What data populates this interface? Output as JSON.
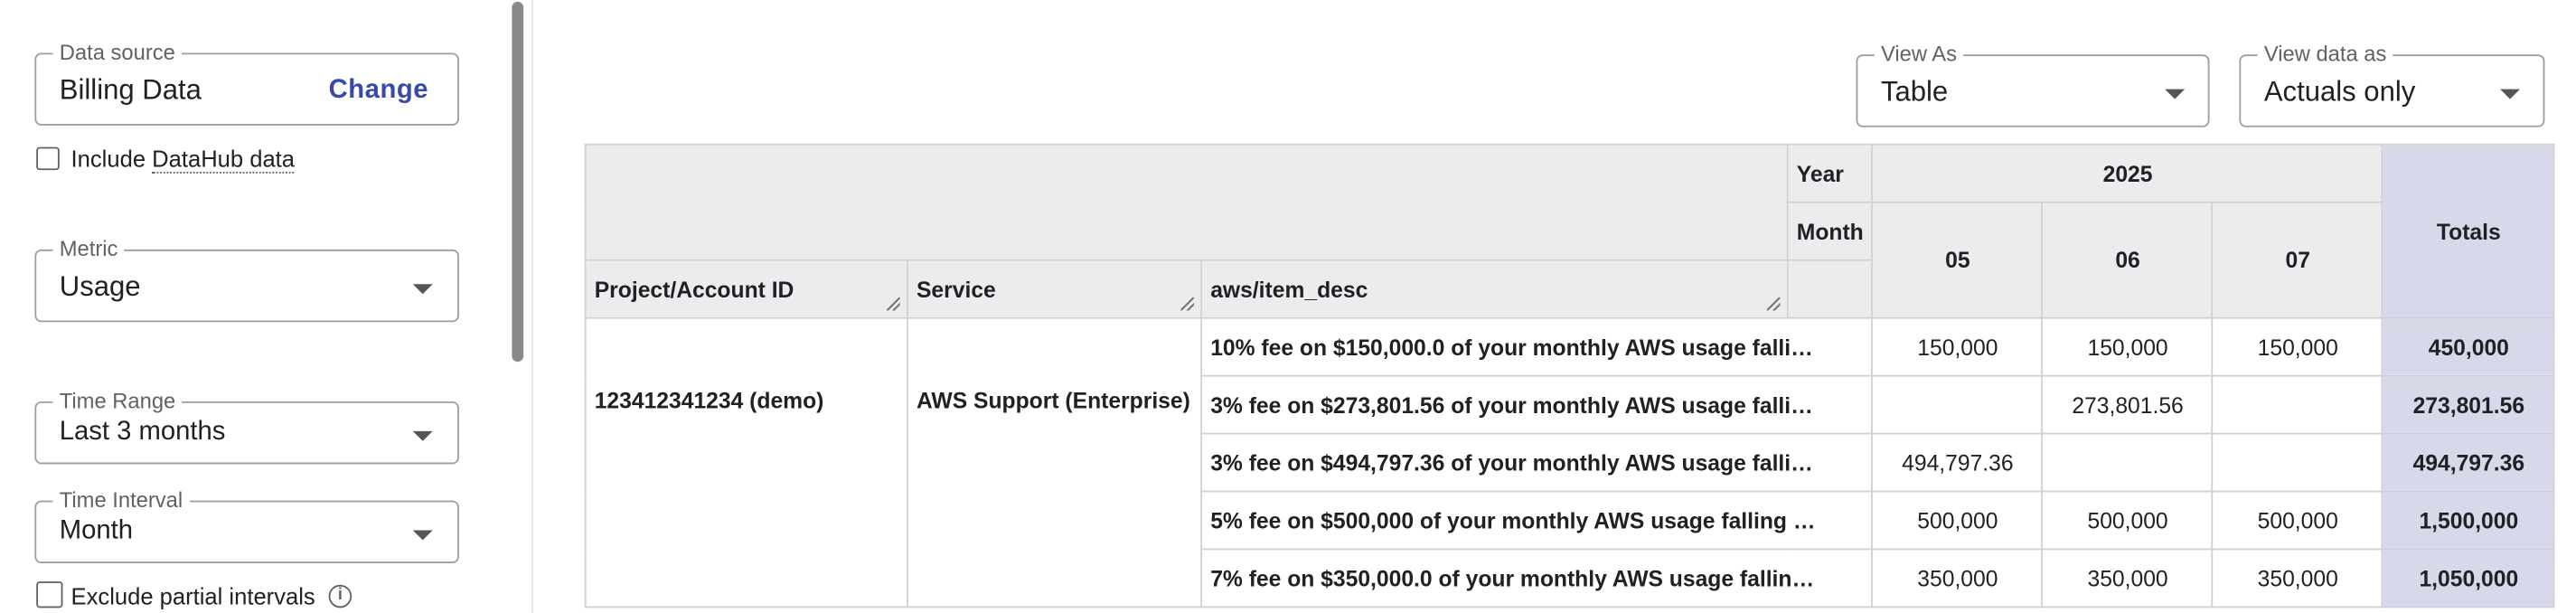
{
  "sidebar": {
    "data_source": {
      "label": "Data source",
      "value": "Billing Data",
      "change_label": "Change"
    },
    "include_datahub": {
      "label_prefix": "Include ",
      "label_link": "DataHub data",
      "checked": false
    },
    "metric": {
      "label": "Metric",
      "value": "Usage"
    },
    "time_range": {
      "label": "Time Range",
      "value": "Last 3 months"
    },
    "time_interval": {
      "label": "Time Interval",
      "value": "Month"
    },
    "exclude_partial": {
      "label": "Exclude partial intervals",
      "checked": false,
      "info_icon": "info-icon"
    }
  },
  "controls": {
    "view_as": {
      "label": "View As",
      "value": "Table"
    },
    "view_data_as": {
      "label": "View data as",
      "value": "Actuals only"
    }
  },
  "table": {
    "year_label": "Year",
    "month_label": "Month",
    "year_value": "2025",
    "months": [
      "05",
      "06",
      "07"
    ],
    "totals_label": "Totals",
    "columns": [
      "Project/Account ID",
      "Service",
      "aws/item_desc"
    ],
    "project": "123412341234 (demo)",
    "service": "AWS Support (Enterprise)",
    "rows": [
      {
        "desc": "10% fee on $150,000.0 of your monthly AWS usage falli…",
        "v05": "150,000",
        "v06": "150,000",
        "v07": "150,000",
        "total": "450,000"
      },
      {
        "desc": "3% fee on $273,801.56 of your monthly AWS usage falli…",
        "v05": "",
        "v06": "273,801.56",
        "v07": "",
        "total": "273,801.56"
      },
      {
        "desc": "3% fee on $494,797.36 of your monthly AWS usage falli…",
        "v05": "494,797.36",
        "v06": "",
        "v07": "",
        "total": "494,797.36"
      },
      {
        "desc": "5% fee on $500,000 of your monthly AWS usage falling …",
        "v05": "500,000",
        "v06": "500,000",
        "v07": "500,000",
        "total": "1,500,000"
      },
      {
        "desc": "7% fee on $350,000.0 of your monthly AWS usage fallin…",
        "v05": "350,000",
        "v06": "350,000",
        "v07": "350,000",
        "total": "1,050,000"
      }
    ]
  }
}
